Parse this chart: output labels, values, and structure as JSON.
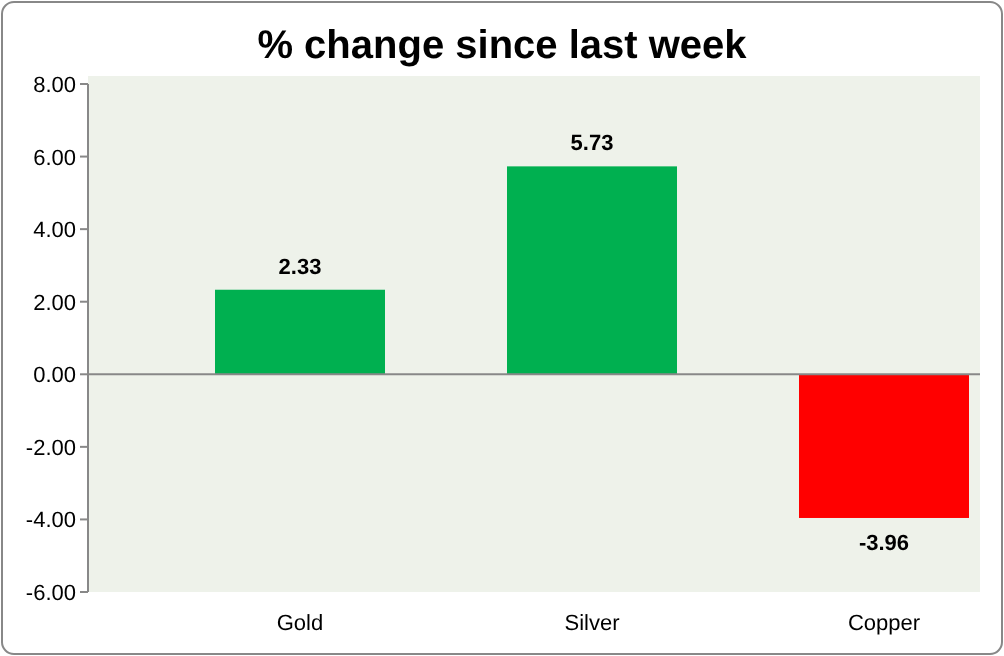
{
  "chart_data": {
    "type": "bar",
    "title": "% change since last week",
    "categories": [
      "Gold",
      "Silver",
      "Copper"
    ],
    "values": [
      2.33,
      5.73,
      -3.96
    ],
    "colors": [
      "#00b050",
      "#00b050",
      "#ff0000"
    ],
    "ylim": [
      -6,
      8
    ],
    "yticks": [
      {
        "value": -6,
        "label": "-6.00"
      },
      {
        "value": -4,
        "label": "-4.00"
      },
      {
        "value": -2,
        "label": "-2.00"
      },
      {
        "value": 0,
        "label": "0.00"
      },
      {
        "value": 2,
        "label": "2.00"
      },
      {
        "value": 4,
        "label": "4.00"
      },
      {
        "value": 6,
        "label": "6.00"
      },
      {
        "value": 8,
        "label": "8.00"
      }
    ],
    "data_labels": true
  }
}
